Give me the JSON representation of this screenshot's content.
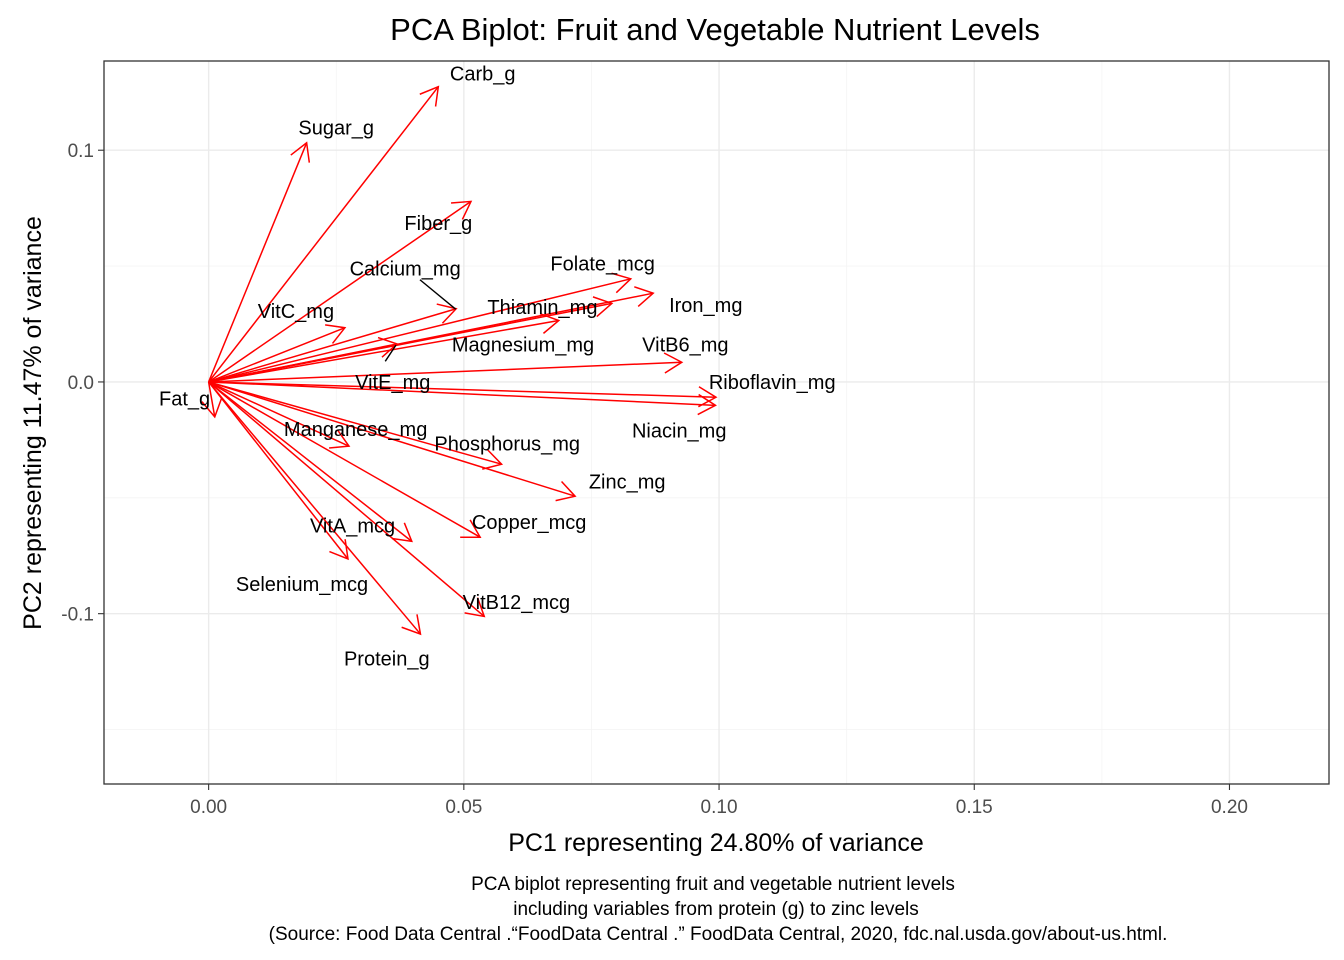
{
  "chart_data": {
    "type": "scatter",
    "subtype": "pca-biplot-loadings",
    "title": "PCA Biplot: Fruit and Vegetable Nutrient Levels",
    "xlabel": "PC1 representing 24.80% of variance",
    "ylabel": "PC2 representing 11.47% of variance",
    "caption": [
      "PCA biplot representing fruit and vegetable nutrient levels",
      "including variables from protein (g) to zinc levels",
      "(Source: Food Data Central .“FoodData Central .” FoodData Central, 2020, fdc.nal.usda.gov/about-us.html."
    ],
    "xlim": [
      -0.0205,
      0.2195
    ],
    "ylim": [
      -0.1735,
      0.1385
    ],
    "x_ticks": [
      0.0,
      0.05,
      0.1,
      0.15,
      0.2
    ],
    "x_tick_labels": [
      "0.00",
      "0.05",
      "0.10",
      "0.15",
      "0.20"
    ],
    "y_ticks": [
      -0.1,
      0.0,
      0.1
    ],
    "y_tick_labels": [
      "-0.1",
      "0.0",
      "0.1"
    ],
    "grid": true,
    "arrow_color": "#ff0000",
    "origin": [
      0,
      0
    ],
    "vectors": [
      {
        "name": "Carb_g",
        "x": 0.045,
        "y": 0.1274
      },
      {
        "name": "Sugar_g",
        "x": 0.0192,
        "y": 0.1032
      },
      {
        "name": "Fiber_g",
        "x": 0.0514,
        "y": 0.0779
      },
      {
        "name": "Calcium_mg",
        "x": 0.0485,
        "y": 0.0316
      },
      {
        "name": "Folate_mcg",
        "x": 0.0827,
        "y": 0.0445
      },
      {
        "name": "Iron_mg",
        "x": 0.0871,
        "y": 0.0383
      },
      {
        "name": "Thiamin_mg",
        "x": 0.079,
        "y": 0.0339
      },
      {
        "name": "Magnesium_mg",
        "x": 0.0686,
        "y": 0.0265
      },
      {
        "name": "VitC_mg",
        "x": 0.0267,
        "y": 0.0234
      },
      {
        "name": "VitE_mg",
        "x": 0.0369,
        "y": 0.0164
      },
      {
        "name": "VitB6_mg",
        "x": 0.0927,
        "y": 0.0085
      },
      {
        "name": "Riboflavin_mg",
        "x": 0.0994,
        "y": -0.0066
      },
      {
        "name": "Niacin_mg",
        "x": 0.0993,
        "y": -0.0101
      },
      {
        "name": "Fat_g",
        "x": 0.0012,
        "y": -0.0151
      },
      {
        "name": "Manganese_mg",
        "x": 0.0275,
        "y": -0.0277
      },
      {
        "name": "Phosphorus_mg",
        "x": 0.0574,
        "y": -0.0355
      },
      {
        "name": "Zinc_mg",
        "x": 0.0718,
        "y": -0.0493
      },
      {
        "name": "Copper_mcg",
        "x": 0.0532,
        "y": -0.067
      },
      {
        "name": "VitA_mcg",
        "x": 0.0398,
        "y": -0.0688
      },
      {
        "name": "Selenium_mcg",
        "x": 0.0273,
        "y": -0.0764
      },
      {
        "name": "VitB12_mcg",
        "x": 0.054,
        "y": -0.1012
      },
      {
        "name": "Protein_g",
        "x": 0.0415,
        "y": -0.1088
      }
    ],
    "labels": [
      {
        "name": "Carb_g",
        "x": 0.0537,
        "y": 0.1331,
        "anchor": "middle"
      },
      {
        "name": "Sugar_g",
        "x": 0.025,
        "y": 0.1098,
        "anchor": "middle"
      },
      {
        "name": "Fiber_g",
        "x": 0.045,
        "y": 0.0686,
        "anchor": "middle"
      },
      {
        "name": "Calcium_mg",
        "x": 0.0385,
        "y": 0.049,
        "anchor": "middle"
      },
      {
        "name": "Folate_mcg",
        "x": 0.0772,
        "y": 0.0511,
        "anchor": "middle"
      },
      {
        "name": "Iron_mg",
        "x": 0.0974,
        "y": 0.0333,
        "anchor": "middle"
      },
      {
        "name": "Thiamin_mg",
        "x": 0.0654,
        "y": 0.0323,
        "anchor": "middle"
      },
      {
        "name": "Magnesium_mg",
        "x": 0.0616,
        "y": 0.0162,
        "anchor": "middle"
      },
      {
        "name": "VitC_mg",
        "x": 0.0171,
        "y": 0.0307,
        "anchor": "middle"
      },
      {
        "name": "VitE_mg",
        "x": 0.0287,
        "y": 0.0,
        "anchor": "start"
      },
      {
        "name": "VitB6_mg",
        "x": 0.0934,
        "y": 0.0162,
        "anchor": "middle"
      },
      {
        "name": "Riboflavin_mg",
        "x": 0.098,
        "y": 0.0,
        "anchor": "start"
      },
      {
        "name": "Niacin_mg",
        "x": 0.0922,
        "y": -0.021,
        "anchor": "middle"
      },
      {
        "name": "Fat_g",
        "x": 0.0003,
        "y": -0.0071,
        "anchor": "end"
      },
      {
        "name": "Manganese_mg",
        "x": 0.0288,
        "y": -0.0203,
        "anchor": "middle"
      },
      {
        "name": "Phosphorus_mg",
        "x": 0.0585,
        "y": -0.0265,
        "anchor": "middle"
      },
      {
        "name": "Zinc_mg",
        "x": 0.082,
        "y": -0.043,
        "anchor": "middle"
      },
      {
        "name": "Copper_mcg",
        "x": 0.0628,
        "y": -0.0605,
        "anchor": "middle"
      },
      {
        "name": "VitA_mcg",
        "x": 0.0282,
        "y": -0.0619,
        "anchor": "middle"
      },
      {
        "name": "Selenium_mcg",
        "x": 0.0183,
        "y": -0.0872,
        "anchor": "middle"
      },
      {
        "name": "VitB12_mcg",
        "x": 0.0603,
        "y": -0.095,
        "anchor": "middle"
      },
      {
        "name": "Protein_g",
        "x": 0.0349,
        "y": -0.1193,
        "anchor": "middle"
      }
    ],
    "leader_lines": [
      {
        "name": "Calcium_mg",
        "x1": 0.0414,
        "y1": 0.0441,
        "x2": 0.0484,
        "y2": 0.0314
      },
      {
        "name": "VitE_mg",
        "x1": 0.0346,
        "y1": 0.0089,
        "x2": 0.0367,
        "y2": 0.0159
      }
    ]
  }
}
